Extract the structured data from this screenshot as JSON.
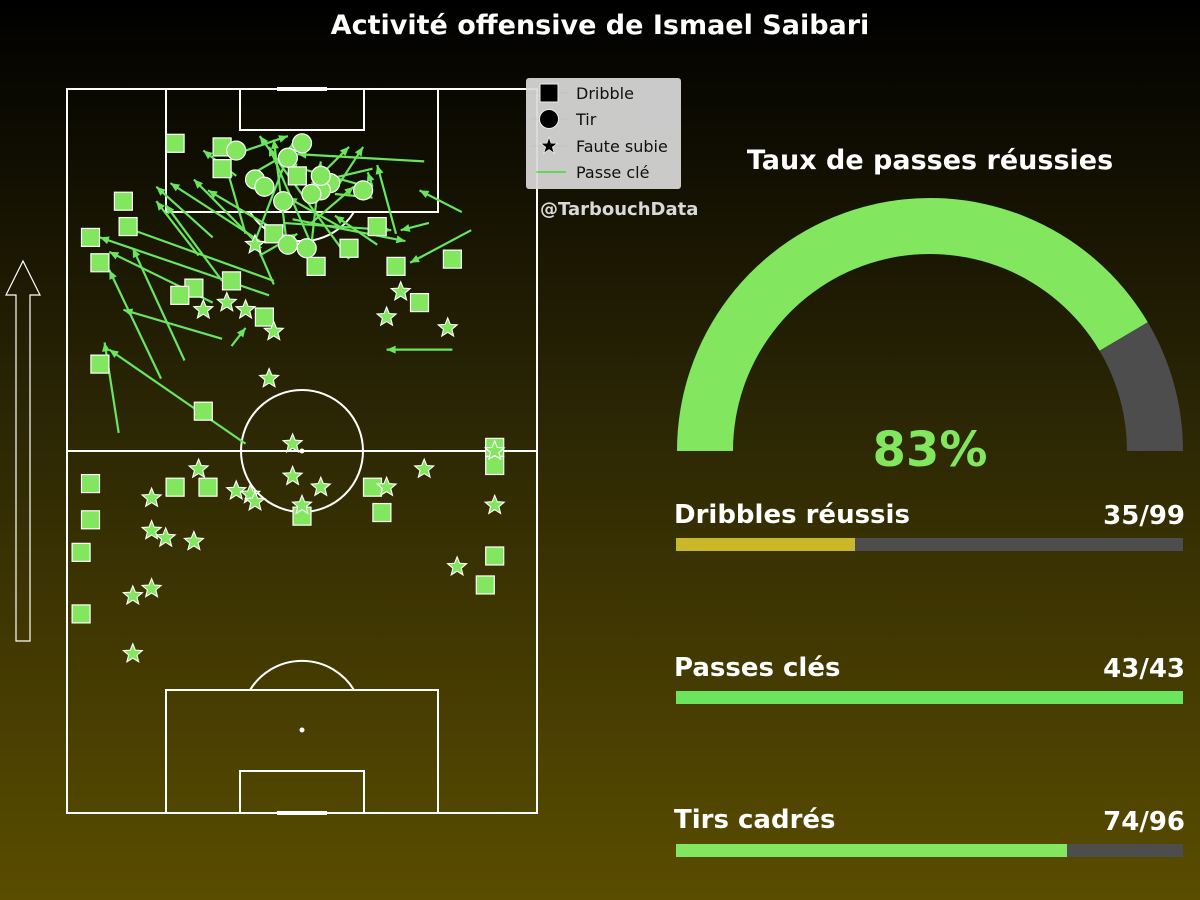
{
  "title": "Activité offensive de Ismael Saibari",
  "credit": "@TarbouchData",
  "legend": {
    "dribble": "Dribble",
    "shot": "Tir",
    "foul": "Faute subie",
    "key_pass": "Passe clé"
  },
  "colors": {
    "marker": "#82e65f",
    "gauge_fill": "#82e65f",
    "gauge_rest": "#4d4d4d",
    "bar_dribbles": "#c9b92a",
    "bar_key_passes": "#6be55c",
    "bar_shots": "#82e65f",
    "bar_bg": "#4d4d4d"
  },
  "gauge": {
    "title": "Taux de passes réussies",
    "value": 83,
    "label": "83%"
  },
  "stats": [
    {
      "label": "Dribbles réussis",
      "value_text": "35/99",
      "fraction": 0.3535
    },
    {
      "label": "Passes clés",
      "value_text": "43/43",
      "fraction": 1.0
    },
    {
      "label": "Tirs cadrés",
      "value_text": "74/96",
      "fraction": 0.7708
    }
  ],
  "chart_data": {
    "type": "scatter",
    "pitch": {
      "length": 100,
      "width": 100,
      "attack_direction": "up"
    },
    "dribbles": [
      [
        23,
        85
      ],
      [
        12,
        69
      ],
      [
        13,
        62
      ],
      [
        5,
        59
      ],
      [
        7,
        52
      ],
      [
        33,
        78
      ],
      [
        33,
        84
      ],
      [
        49,
        76
      ],
      [
        53,
        51
      ],
      [
        60,
        56
      ],
      [
        44,
        60
      ],
      [
        27,
        45
      ],
      [
        24,
        43
      ],
      [
        35,
        47
      ],
      [
        42,
        37
      ],
      [
        66,
        62
      ],
      [
        70,
        51
      ],
      [
        82,
        53
      ],
      [
        7,
        24
      ],
      [
        29,
        11
      ],
      [
        5,
        -9
      ],
      [
        23,
        -10
      ],
      [
        30,
        -10
      ],
      [
        5,
        -19
      ],
      [
        50,
        -18
      ],
      [
        65,
        -10
      ],
      [
        67,
        -17
      ],
      [
        91,
        1
      ],
      [
        91,
        -4
      ],
      [
        3,
        -28
      ],
      [
        91,
        -29
      ],
      [
        89,
        -37
      ],
      [
        3,
        -45
      ],
      [
        75,
        41
      ]
    ],
    "shots": [
      [
        36,
        83
      ],
      [
        50,
        85
      ],
      [
        47,
        81
      ],
      [
        40,
        75
      ],
      [
        42,
        73
      ],
      [
        46,
        69
      ],
      [
        56,
        74
      ],
      [
        54,
        72
      ],
      [
        63,
        72
      ],
      [
        52,
        71
      ],
      [
        54,
        76
      ],
      [
        47,
        57
      ],
      [
        51,
        56
      ]
    ],
    "fouls": [
      [
        81,
        34
      ],
      [
        71,
        44
      ],
      [
        68,
        37
      ],
      [
        34,
        41
      ],
      [
        38,
        39
      ],
      [
        29,
        39
      ],
      [
        44,
        33
      ],
      [
        40,
        57
      ],
      [
        43,
        20
      ],
      [
        48,
        2
      ],
      [
        28,
        -5
      ],
      [
        36,
        -11
      ],
      [
        39,
        -12
      ],
      [
        40,
        -14
      ],
      [
        50,
        -15
      ],
      [
        48,
        -7
      ],
      [
        91,
        0
      ],
      [
        76,
        -5
      ],
      [
        54,
        -10
      ],
      [
        68,
        -10
      ],
      [
        91,
        -15
      ],
      [
        18,
        -13
      ],
      [
        18,
        -22
      ],
      [
        21,
        -24
      ],
      [
        27,
        -25
      ],
      [
        83,
        -32
      ],
      [
        18,
        -38
      ],
      [
        14,
        -40
      ],
      [
        14,
        -56
      ]
    ],
    "key_passes": [
      [
        47,
        55,
        44,
        86
      ],
      [
        52,
        57,
        43,
        84
      ],
      [
        60,
        53,
        41,
        87
      ],
      [
        40,
        58,
        48,
        85
      ],
      [
        64,
        73,
        47,
        79
      ],
      [
        76,
        80,
        49,
        82
      ],
      [
        53,
        75,
        60,
        84
      ],
      [
        58,
        74,
        63,
        84
      ],
      [
        40,
        77,
        52,
        86
      ],
      [
        38,
        83,
        47,
        87
      ],
      [
        33,
        47,
        21,
        68
      ],
      [
        44,
        47,
        12,
        62
      ],
      [
        43,
        43,
        7,
        59
      ],
      [
        25,
        25,
        14,
        56
      ],
      [
        20,
        20,
        9,
        50
      ],
      [
        31,
        41,
        9,
        55
      ],
      [
        11,
        5,
        8,
        30
      ],
      [
        33,
        31,
        12,
        39
      ],
      [
        40,
        58,
        27,
        75
      ],
      [
        65,
        78,
        52,
        74
      ],
      [
        86,
        61,
        73,
        52
      ],
      [
        77,
        63,
        71,
        61
      ],
      [
        70,
        60,
        66,
        79
      ],
      [
        66,
        57,
        57,
        65
      ],
      [
        48,
        64,
        72,
        58
      ],
      [
        35,
        29,
        38,
        34
      ],
      [
        52,
        57,
        54,
        80
      ],
      [
        47,
        59,
        30,
        72
      ],
      [
        44,
        46,
        40,
        58
      ],
      [
        38,
        60,
        34,
        78
      ],
      [
        46,
        63,
        69,
        61
      ],
      [
        82,
        28,
        68,
        28
      ],
      [
        31,
        59,
        19,
        73
      ],
      [
        41,
        54,
        49,
        60
      ],
      [
        58,
        62,
        47,
        70
      ],
      [
        65,
        73,
        64,
        77
      ],
      [
        57,
        71,
        65,
        70
      ],
      [
        52,
        63,
        61,
        73
      ],
      [
        84,
        66,
        75,
        72
      ],
      [
        41,
        58,
        22,
        74
      ],
      [
        36,
        76,
        29,
        83
      ],
      [
        38,
        2,
        9,
        28
      ],
      [
        28,
        54,
        19,
        69
      ]
    ]
  }
}
